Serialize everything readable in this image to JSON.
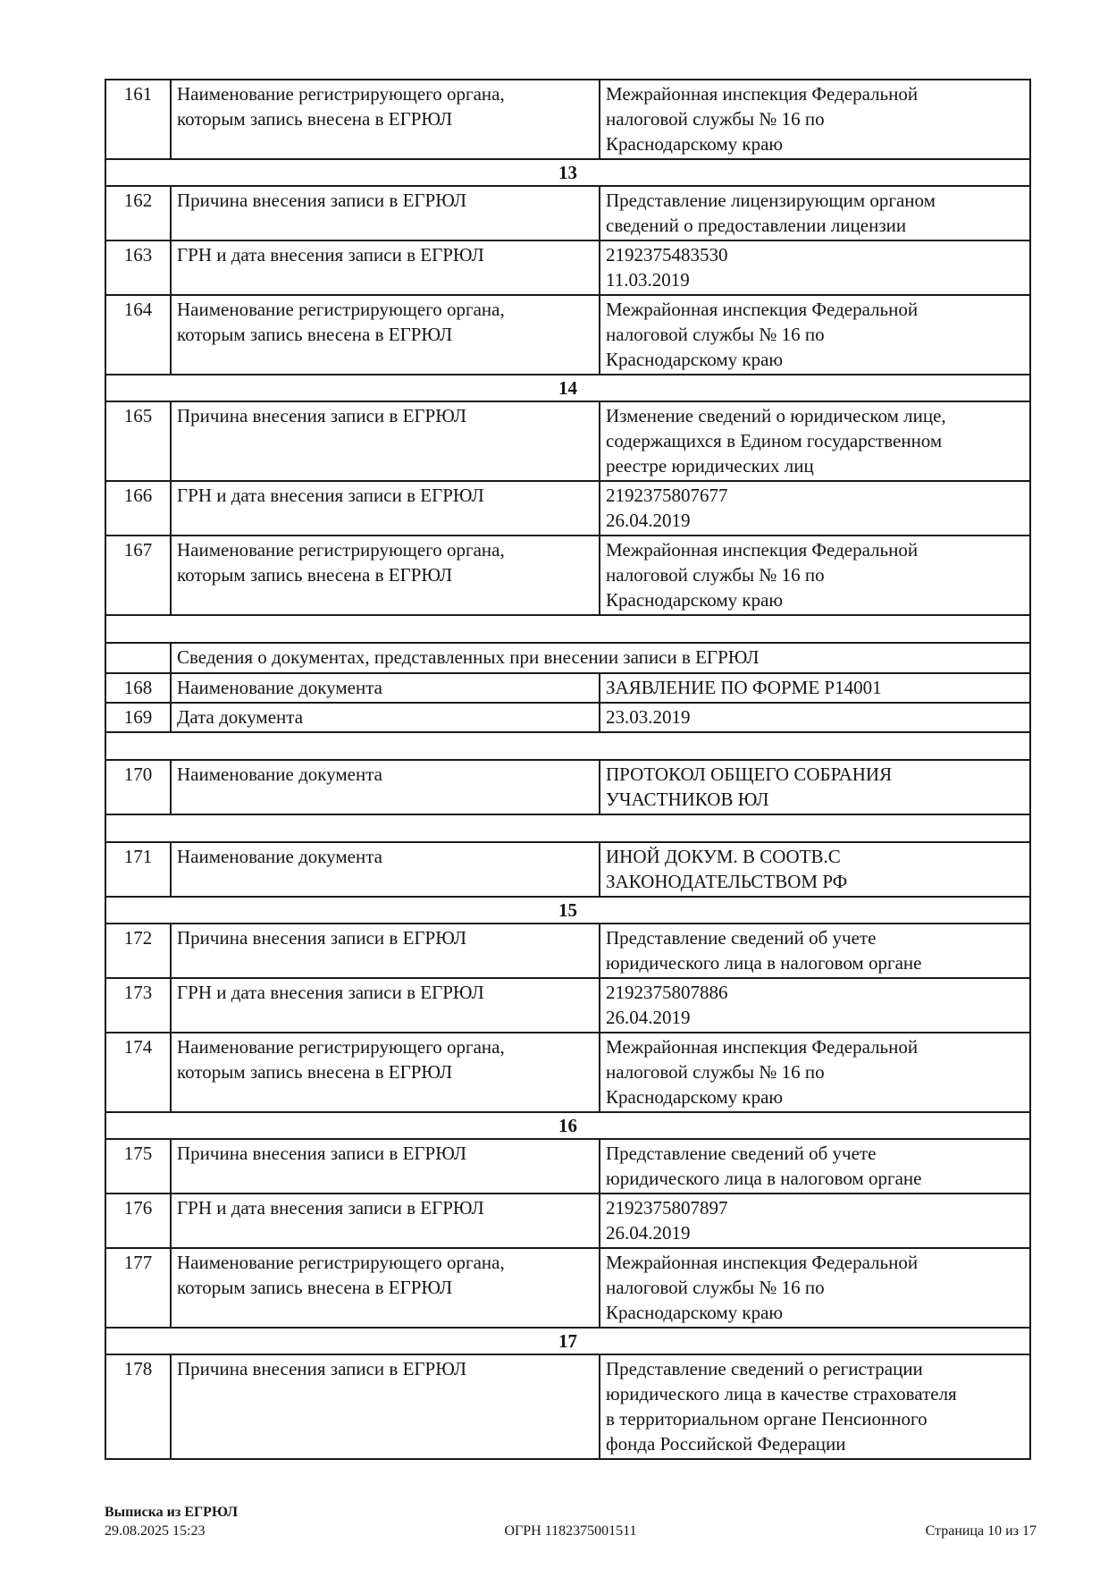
{
  "table": {
    "rows": [
      {
        "type": "data",
        "num": "161",
        "label": "Наименование регистрирующего органа,\nкоторым запись внесена в ЕГРЮЛ",
        "value": "Межрайонная инспекция Федеральной\nналоговой службы № 16 по\nКраснодарскому краю"
      },
      {
        "type": "section",
        "label": "13"
      },
      {
        "type": "data",
        "num": "162",
        "label": "Причина внесения записи в ЕГРЮЛ",
        "value": "Представление лицензирующим органом\nсведений о предоставлении лицензии"
      },
      {
        "type": "data",
        "num": "163",
        "label": "ГРН и дата внесения записи в ЕГРЮЛ",
        "value": "2192375483530\n11.03.2019"
      },
      {
        "type": "data",
        "num": "164",
        "label": "Наименование регистрирующего органа,\nкоторым запись внесена в ЕГРЮЛ",
        "value": "Межрайонная инспекция Федеральной\nналоговой службы № 16 по\nКраснодарскому краю"
      },
      {
        "type": "section",
        "label": "14"
      },
      {
        "type": "data",
        "num": "165",
        "label": "Причина внесения записи в ЕГРЮЛ",
        "value": "Изменение сведений о юридическом лице,\nсодержащихся в Едином государственном\nреестре юридических лиц"
      },
      {
        "type": "data",
        "num": "166",
        "label": "ГРН и дата внесения записи в ЕГРЮЛ",
        "value": "2192375807677\n26.04.2019"
      },
      {
        "type": "data",
        "num": "167",
        "label": "Наименование регистрирующего органа,\nкоторым запись внесена в ЕГРЮЛ",
        "value": "Межрайонная инспекция Федеральной\nналоговой службы № 16 по\nКраснодарскому краю"
      },
      {
        "type": "empty"
      },
      {
        "type": "subheader",
        "label": "Сведения о документах, представленных при внесении записи в ЕГРЮЛ"
      },
      {
        "type": "data",
        "num": "168",
        "label": "Наименование документа",
        "value": "ЗАЯВЛЕНИЕ ПО ФОРМЕ Р14001"
      },
      {
        "type": "data",
        "num": "169",
        "label": "Дата документа",
        "value": "23.03.2019"
      },
      {
        "type": "empty"
      },
      {
        "type": "data",
        "num": "170",
        "label": "Наименование документа",
        "value": "ПРОТОКОЛ ОБЩЕГО СОБРАНИЯ\nУЧАСТНИКОВ ЮЛ"
      },
      {
        "type": "empty"
      },
      {
        "type": "data",
        "num": "171",
        "label": "Наименование документа",
        "value": "ИНОЙ ДОКУМ. В СООТВ.С\nЗАКОНОДАТЕЛЬСТВОМ РФ"
      },
      {
        "type": "section",
        "label": "15"
      },
      {
        "type": "data",
        "num": "172",
        "label": "Причина внесения записи в ЕГРЮЛ",
        "value": "Представление сведений об учете\nюридического лица в налоговом органе"
      },
      {
        "type": "data",
        "num": "173",
        "label": "ГРН и дата внесения записи в ЕГРЮЛ",
        "value": "2192375807886\n26.04.2019"
      },
      {
        "type": "data",
        "num": "174",
        "label": "Наименование регистрирующего органа,\nкоторым запись внесена в ЕГРЮЛ",
        "value": "Межрайонная инспекция Федеральной\nналоговой службы № 16 по\nКраснодарскому краю"
      },
      {
        "type": "section",
        "label": "16"
      },
      {
        "type": "data",
        "num": "175",
        "label": "Причина внесения записи в ЕГРЮЛ",
        "value": "Представление сведений об учете\nюридического лица в налоговом органе"
      },
      {
        "type": "data",
        "num": "176",
        "label": "ГРН и дата внесения записи в ЕГРЮЛ",
        "value": "2192375807897\n26.04.2019"
      },
      {
        "type": "data",
        "num": "177",
        "label": "Наименование регистрирующего органа,\nкоторым запись внесена в ЕГРЮЛ",
        "value": "Межрайонная инспекция Федеральной\nналоговой службы № 16 по\nКраснодарскому краю"
      },
      {
        "type": "section",
        "label": "17"
      },
      {
        "type": "data",
        "num": "178",
        "label": "Причина внесения записи в ЕГРЮЛ",
        "value": "Представление сведений о регистрации\nюридического лица в качестве страхователя\nв территориальном органе Пенсионного\nфонда Российской Федерации"
      }
    ]
  },
  "footer": {
    "doc_title": "Выписка из ЕГРЮЛ",
    "datetime": "29.08.2025 15:23",
    "ogrn": "ОГРН 1182375001511",
    "page_info": "Страница 10 из 17"
  }
}
